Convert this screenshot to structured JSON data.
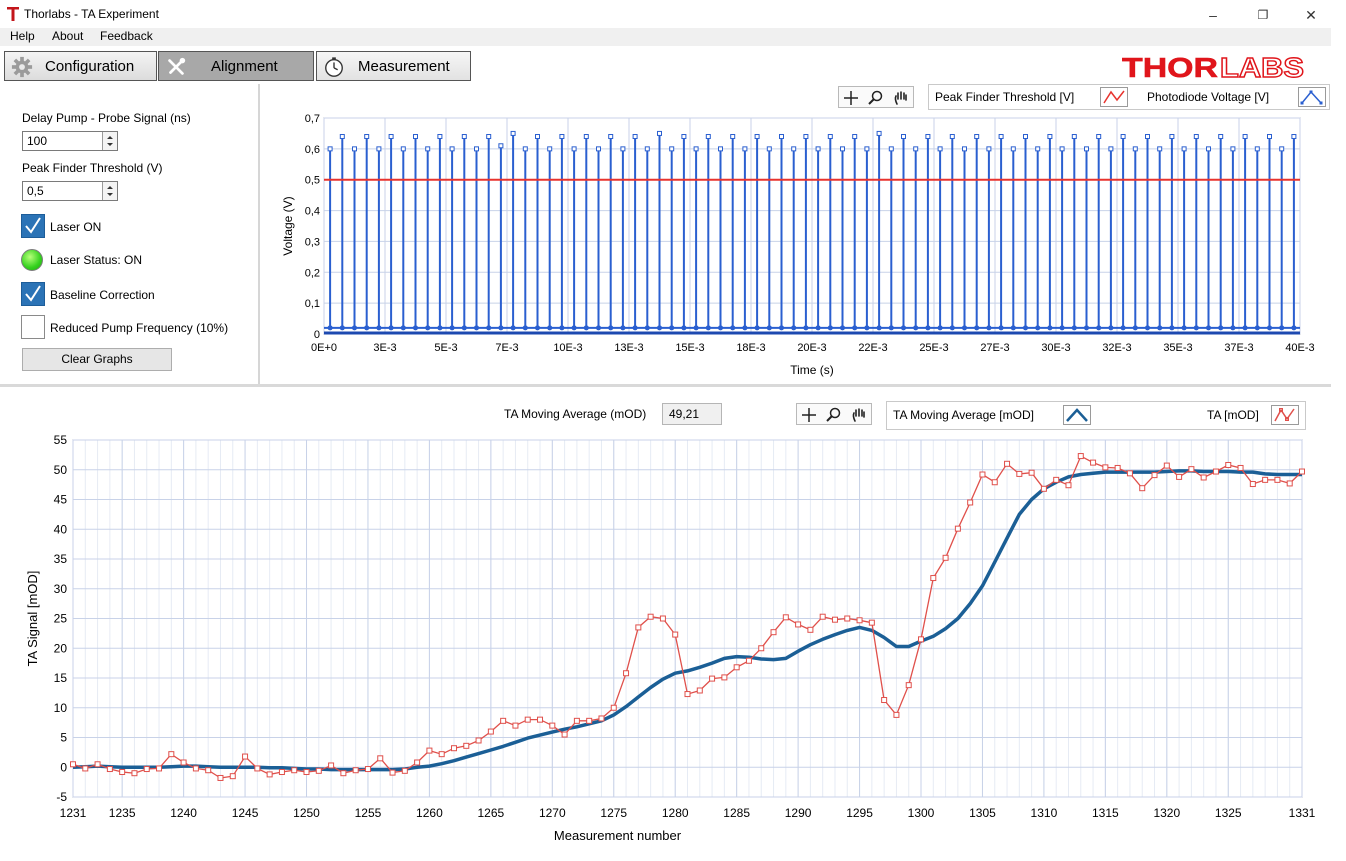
{
  "window": {
    "title": "Thorlabs - TA Experiment",
    "minimize": "–",
    "restore": "❐",
    "close": "✕"
  },
  "menu": [
    "Help",
    "About",
    "Feedback"
  ],
  "tabs": [
    {
      "label": "Configuration",
      "icon": "gear-icon",
      "active": false
    },
    {
      "label": "Alignment",
      "icon": "wrench-screwdriver-icon",
      "active": true
    },
    {
      "label": "Measurement",
      "icon": "stopwatch-icon",
      "active": false
    }
  ],
  "logo": {
    "text": "THORLABS",
    "color": "#e0151b"
  },
  "controls": {
    "delay_label": "Delay Pump - Probe Signal (ns)",
    "delay_value": "100",
    "threshold_label": "Peak Finder Threshold (V)",
    "threshold_value": "0,5",
    "laser_on_label": "Laser ON",
    "laser_on_checked": true,
    "laser_status_label": "Laser Status: ON",
    "laser_status_color": "#33d11d",
    "baseline_label": "Baseline Correction",
    "baseline_checked": true,
    "reduced_label": "Reduced Pump Frequency (10%)",
    "reduced_checked": false,
    "clear_button": "Clear Graphs"
  },
  "top_legend": {
    "threshold": "Peak Finder Threshold [V]",
    "photodiode": "Photodiode Voltage [V]"
  },
  "bottom_header": {
    "avg_label": "TA Moving Average (mOD)",
    "avg_value": "49,21",
    "legend_avg": "TA Moving Average [mOD]",
    "legend_ta": "TA [mOD]"
  },
  "colors": {
    "pulse": "#2a5fd0",
    "threshold": "#e8332e",
    "ta": "#e0504b",
    "avg": "#1b5f96",
    "grid": "#c8d2e8"
  },
  "chart_data": [
    {
      "type": "line",
      "xlabel": "Time (s)",
      "ylabel": "Voltage (V)",
      "x_ticks": [
        "0E+0",
        "3E-3",
        "5E-3",
        "7E-3",
        "10E-3",
        "13E-3",
        "15E-3",
        "18E-3",
        "20E-3",
        "22E-3",
        "25E-3",
        "27E-3",
        "30E-3",
        "32E-3",
        "35E-3",
        "37E-3",
        "40E-3"
      ],
      "y_ticks": [
        "0",
        "0,1",
        "0,2",
        "0,3",
        "0,4",
        "0,5",
        "0,6",
        "0,7"
      ],
      "xlim": [
        0,
        0.04
      ],
      "ylim": [
        0,
        0.7
      ],
      "grid": true,
      "series": [
        {
          "name": "Peak Finder Threshold [V]",
          "values": [
            0.5,
            0.5
          ]
        },
        {
          "name": "Photodiode Voltage [V]",
          "pulse_period_s": 0.001,
          "baseline": 0.02,
          "peaks": [
            0.6,
            0.64,
            0.6,
            0.64,
            0.6,
            0.64,
            0.6,
            0.64,
            0.6,
            0.64,
            0.6,
            0.64,
            0.6,
            0.64,
            0.61,
            0.65,
            0.6,
            0.64,
            0.6,
            0.64,
            0.6,
            0.64,
            0.6,
            0.64,
            0.6,
            0.64,
            0.6,
            0.65,
            0.6,
            0.64,
            0.6,
            0.64,
            0.6,
            0.64,
            0.6,
            0.64,
            0.6,
            0.64,
            0.6,
            0.64,
            0.6,
            0.64,
            0.6,
            0.64,
            0.6,
            0.65,
            0.6,
            0.64,
            0.6,
            0.64,
            0.6,
            0.64,
            0.6,
            0.64,
            0.6,
            0.64,
            0.6,
            0.64,
            0.6,
            0.64,
            0.6,
            0.64,
            0.6,
            0.64,
            0.6,
            0.64,
            0.6,
            0.64,
            0.6,
            0.64,
            0.6,
            0.64,
            0.6,
            0.64,
            0.6,
            0.64,
            0.6,
            0.64,
            0.6,
            0.64
          ]
        }
      ]
    },
    {
      "type": "line",
      "xlabel": "Measurement number",
      "ylabel": "TA Signal [mOD]",
      "x_ticks": [
        "1231",
        "1235",
        "1240",
        "1245",
        "1250",
        "1255",
        "1260",
        "1265",
        "1270",
        "1275",
        "1280",
        "1285",
        "1290",
        "1295",
        "1300",
        "1305",
        "1310",
        "1315",
        "1320",
        "1325",
        "1331"
      ],
      "y_ticks": [
        "-5",
        "0",
        "5",
        "10",
        "15",
        "20",
        "25",
        "30",
        "35",
        "40",
        "45",
        "50",
        "55"
      ],
      "xlim": [
        1231,
        1331
      ],
      "ylim": [
        -5,
        55
      ],
      "grid": true,
      "x": [
        1231,
        1232,
        1233,
        1234,
        1235,
        1236,
        1237,
        1238,
        1239,
        1240,
        1241,
        1242,
        1243,
        1244,
        1245,
        1246,
        1247,
        1248,
        1249,
        1250,
        1251,
        1252,
        1253,
        1254,
        1255,
        1256,
        1257,
        1258,
        1259,
        1260,
        1261,
        1262,
        1263,
        1264,
        1265,
        1266,
        1267,
        1268,
        1269,
        1270,
        1271,
        1272,
        1273,
        1274,
        1275,
        1276,
        1277,
        1278,
        1279,
        1280,
        1281,
        1282,
        1283,
        1284,
        1285,
        1286,
        1287,
        1288,
        1289,
        1290,
        1291,
        1292,
        1293,
        1294,
        1295,
        1296,
        1297,
        1298,
        1299,
        1300,
        1301,
        1302,
        1303,
        1304,
        1305,
        1306,
        1307,
        1308,
        1309,
        1310,
        1311,
        1312,
        1313,
        1314,
        1315,
        1316,
        1317,
        1318,
        1319,
        1320,
        1321,
        1322,
        1323,
        1324,
        1325,
        1326,
        1327,
        1328,
        1329,
        1330,
        1331
      ],
      "series": [
        {
          "name": "TA [mOD]",
          "values": [
            0.5,
            -0.2,
            0.5,
            -0.3,
            -0.8,
            -1.0,
            -0.3,
            -0.2,
            2.2,
            0.8,
            -0.2,
            -0.5,
            -1.8,
            -1.5,
            1.8,
            -0.2,
            -1.2,
            -0.8,
            -0.5,
            -0.8,
            -0.6,
            0.3,
            -1.0,
            -0.5,
            -0.3,
            1.5,
            -0.9,
            -0.6,
            0.8,
            2.8,
            2.2,
            3.2,
            3.6,
            4.5,
            6.0,
            7.8,
            7.0,
            8.0,
            8.0,
            7.0,
            5.5,
            7.8,
            7.8,
            8.2,
            10.0,
            15.8,
            23.5,
            25.3,
            25.0,
            22.3,
            12.3,
            12.9,
            14.9,
            15.1,
            16.8,
            17.9,
            20.0,
            22.7,
            25.2,
            24.0,
            23.1,
            25.3,
            24.8,
            25.0,
            24.7,
            24.3,
            11.3,
            8.8,
            13.8,
            21.5,
            31.8,
            35.2,
            40.1,
            44.5,
            49.2,
            47.9,
            51.0,
            49.3,
            49.5,
            46.8,
            48.3,
            47.4,
            52.3,
            51.2,
            50.4,
            50.3,
            49.4,
            46.9,
            49.1,
            50.7,
            48.8,
            50.1,
            48.7,
            49.7,
            50.8,
            50.3,
            47.6,
            48.3,
            48.3,
            47.7,
            49.7
          ]
        },
        {
          "name": "TA Moving Average [mOD]",
          "values": [
            0,
            0.1,
            0.2,
            0.1,
            0,
            0,
            0,
            0,
            0.1,
            0.2,
            0.2,
            0.1,
            0,
            0,
            0,
            0,
            -0.1,
            -0.1,
            -0.2,
            -0.3,
            -0.3,
            -0.4,
            -0.4,
            -0.4,
            -0.4,
            -0.4,
            -0.4,
            -0.3,
            0,
            0.2,
            0.6,
            1.1,
            1.7,
            2.3,
            2.9,
            3.5,
            4.2,
            4.9,
            5.4,
            5.9,
            6.4,
            6.8,
            7.3,
            7.8,
            8.8,
            10.2,
            11.8,
            13.4,
            14.8,
            15.8,
            16.2,
            16.8,
            17.5,
            18.3,
            18.6,
            18.5,
            18.2,
            18.1,
            18.3,
            19.5,
            20.6,
            21.5,
            22.3,
            23.0,
            23.5,
            23.0,
            21.8,
            20.3,
            20.3,
            21.2,
            22.0,
            23.3,
            25.0,
            27.5,
            30.5,
            34.5,
            38.5,
            42.5,
            45.0,
            46.8,
            47.9,
            48.8,
            49.2,
            49.4,
            49.6,
            49.6,
            49.6,
            49.6,
            49.6,
            49.7,
            49.8,
            49.8,
            49.7,
            49.7,
            49.7,
            49.6,
            49.6,
            49.3,
            49.2,
            49.2,
            49.2
          ]
        }
      ]
    }
  ]
}
